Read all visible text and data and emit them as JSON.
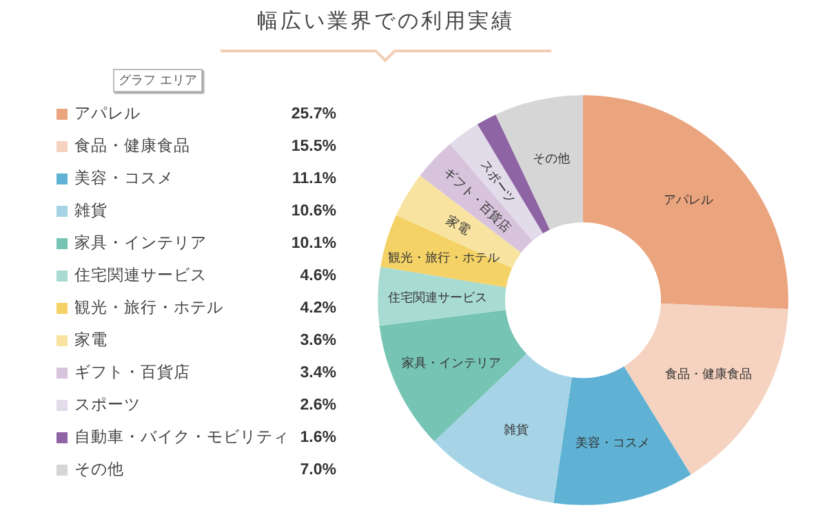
{
  "chart_data": {
    "type": "donut",
    "title": "幅広い業界での利用実績",
    "annotations": [
      "グラフ エリア"
    ],
    "categories": [
      "アパレル",
      "食品・健康食品",
      "美容・コスメ",
      "雑貨",
      "家具・インテリア",
      "住宅関連サービス",
      "観光・旅行・ホテル",
      "家電",
      "ギフト・百貨店",
      "スポーツ",
      "自動車・バイク・モビリティ",
      "その他"
    ],
    "values": [
      25.7,
      15.5,
      11.1,
      10.6,
      10.1,
      4.6,
      4.2,
      3.6,
      3.4,
      2.6,
      1.6,
      7.0
    ],
    "value_labels": [
      "25.7%",
      "15.5%",
      "11.1%",
      "10.6%",
      "10.1%",
      "4.6%",
      "4.2%",
      "3.6%",
      "3.4%",
      "2.6%",
      "1.6%",
      "7.0%"
    ],
    "colors": [
      "#eba57e",
      "#f5d3c0",
      "#5fb2d4",
      "#a6d4e6",
      "#76c4b4",
      "#a8dbd2",
      "#f4d266",
      "#f8e4a0",
      "#d7c4dc",
      "#e2dbea",
      "#8e64a4",
      "#d6d6d6"
    ],
    "legend": "left"
  }
}
